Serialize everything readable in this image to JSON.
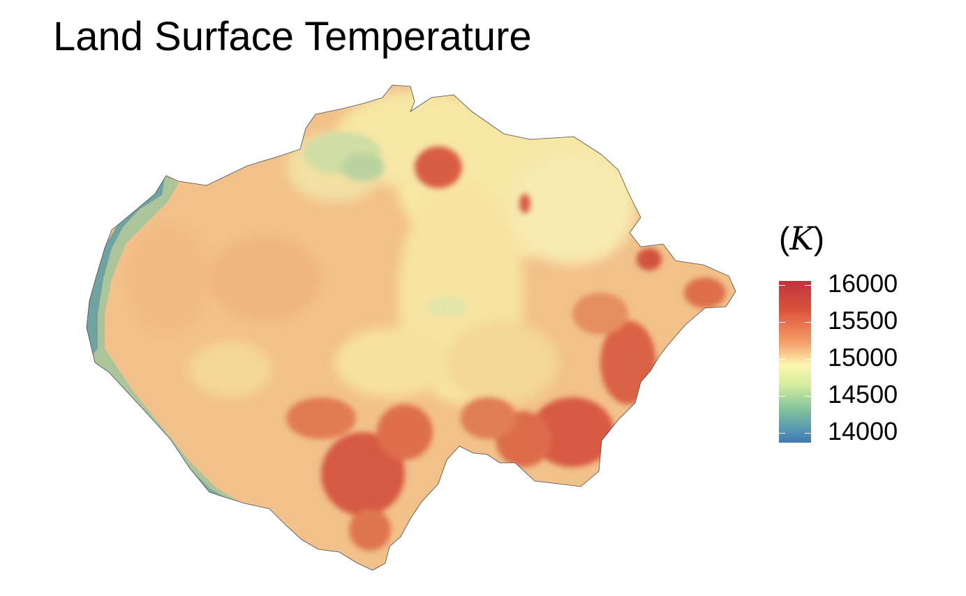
{
  "map": {
    "title": "Land Surface Temperature",
    "colors": {
      "low": "#4678ab",
      "mid": "#fdf6b2",
      "high": "#c0333e",
      "coast_green": "#7fb89e",
      "warm_orange": "#f4b27a",
      "hot_red": "#d9503a",
      "pale_yellow": "#fbeeaa"
    }
  },
  "legend": {
    "title": "(K)",
    "title_open": "(",
    "title_unit": "K",
    "title_close": ")",
    "labels": [
      "16000",
      "15500",
      "15000",
      "14500",
      "14000"
    ],
    "values": [
      16000,
      15500,
      15000,
      14500,
      14000
    ],
    "min": 14000,
    "max": 16000
  }
}
